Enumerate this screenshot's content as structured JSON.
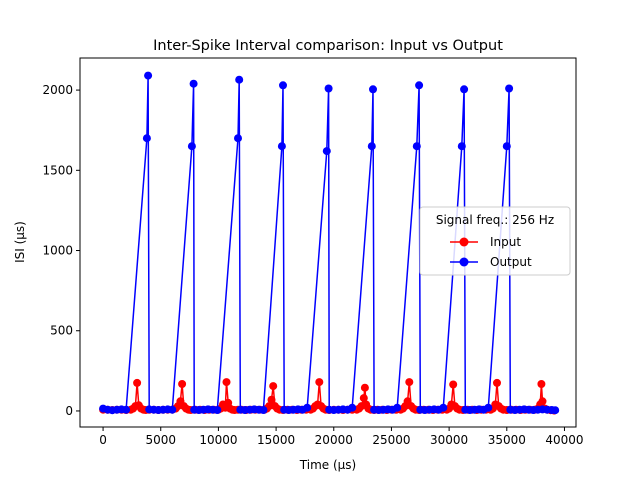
{
  "chart_data": {
    "type": "line",
    "title": "Inter-Spike Interval comparison: Input vs Output",
    "xlabel": "Time (μs)",
    "ylabel": "ISI (μs)",
    "xlim": [
      -2000,
      41000
    ],
    "ylim": [
      -100,
      2200
    ],
    "xticks": [
      0,
      5000,
      10000,
      15000,
      20000,
      25000,
      30000,
      35000,
      40000
    ],
    "yticks": [
      0,
      500,
      1000,
      1500,
      2000
    ],
    "grid": false,
    "legend": {
      "title": "Signal freq.: 256 Hz",
      "placement": "center-right"
    },
    "series": [
      {
        "name": "Input",
        "color": "#ff0000",
        "x": [
          0,
          400,
          800,
          1200,
          1600,
          2000,
          2400,
          2600,
          2800,
          2950,
          3100,
          3300,
          3500,
          3700,
          4000,
          4400,
          4800,
          5200,
          5600,
          6000,
          6300,
          6500,
          6700,
          6850,
          7000,
          7200,
          7400,
          7600,
          8000,
          8400,
          8800,
          9200,
          9600,
          10000,
          10200,
          10400,
          10600,
          10700,
          10850,
          11000,
          11200,
          11400,
          11700,
          12000,
          12400,
          12800,
          13200,
          13600,
          14000,
          14200,
          14400,
          14600,
          14750,
          14900,
          15100,
          15300,
          15600,
          16000,
          16400,
          16800,
          17200,
          17600,
          18000,
          18200,
          18400,
          18600,
          18750,
          18900,
          19100,
          19300,
          19600,
          20000,
          20400,
          20800,
          21200,
          21600,
          22000,
          22200,
          22400,
          22600,
          22700,
          22800,
          23000,
          23200,
          23500,
          23800,
          24200,
          24600,
          25000,
          25400,
          25800,
          26000,
          26200,
          26400,
          26550,
          26700,
          26900,
          27100,
          27400,
          27800,
          28200,
          28600,
          29000,
          29400,
          29800,
          30000,
          30200,
          30350,
          30500,
          30700,
          30900,
          31200,
          31600,
          32000,
          32400,
          32800,
          33200,
          33600,
          33800,
          34000,
          34150,
          34300,
          34500,
          34700,
          35000,
          35400,
          35800,
          36200,
          36600,
          37000,
          37400,
          37700,
          37900,
          38000,
          38100,
          38300,
          38500,
          38800,
          39100
        ],
        "values": [
          8,
          7,
          6,
          8,
          7,
          6,
          8,
          15,
          30,
          175,
          35,
          15,
          8,
          6,
          7,
          8,
          6,
          7,
          8,
          8,
          15,
          30,
          60,
          168,
          30,
          15,
          8,
          6,
          7,
          8,
          6,
          7,
          8,
          8,
          15,
          40,
          20,
          180,
          50,
          15,
          8,
          6,
          7,
          8,
          6,
          7,
          8,
          8,
          8,
          15,
          30,
          70,
          155,
          30,
          15,
          8,
          6,
          7,
          8,
          6,
          7,
          8,
          8,
          15,
          30,
          40,
          180,
          30,
          15,
          8,
          6,
          8,
          7,
          6,
          8,
          7,
          8,
          15,
          30,
          80,
          145,
          40,
          15,
          8,
          6,
          8,
          7,
          6,
          8,
          7,
          8,
          15,
          30,
          60,
          180,
          30,
          15,
          8,
          6,
          8,
          7,
          6,
          8,
          7,
          8,
          15,
          40,
          165,
          30,
          15,
          8,
          6,
          7,
          8,
          6,
          7,
          8,
          7,
          15,
          40,
          175,
          30,
          15,
          8,
          6,
          7,
          8,
          6,
          7,
          8,
          7,
          15,
          40,
          168,
          60,
          15,
          8,
          5,
          2
        ]
      },
      {
        "name": "Output",
        "color": "#0000ff",
        "x": [
          0,
          400,
          800,
          1200,
          1600,
          2000,
          3800,
          3900,
          4000,
          4400,
          4800,
          5200,
          5600,
          6000,
          7700,
          7850,
          7900,
          8300,
          8700,
          9100,
          9500,
          9900,
          11700,
          11800,
          11900,
          12300,
          12700,
          13100,
          13500,
          13900,
          15500,
          15600,
          15700,
          16100,
          16500,
          16900,
          17300,
          17700,
          19400,
          19550,
          19600,
          20000,
          20400,
          20800,
          21200,
          21600,
          23300,
          23400,
          23500,
          23900,
          24300,
          24700,
          25100,
          25500,
          27200,
          27400,
          27500,
          27900,
          28300,
          28700,
          29100,
          29500,
          31100,
          31300,
          31400,
          31800,
          32200,
          32600,
          33000,
          33400,
          35000,
          35200,
          35300,
          35700,
          36100,
          36500,
          36900,
          37300,
          37700,
          38100,
          38500,
          38900,
          39200
        ],
        "values": [
          15,
          8,
          5,
          8,
          10,
          8,
          1700,
          2090,
          10,
          8,
          6,
          8,
          10,
          8,
          1650,
          2040,
          8,
          6,
          8,
          10,
          8,
          6,
          1700,
          2065,
          8,
          6,
          8,
          10,
          8,
          6,
          1650,
          2030,
          8,
          6,
          8,
          10,
          8,
          20,
          1620,
          2010,
          8,
          6,
          8,
          10,
          8,
          20,
          1650,
          2005,
          8,
          6,
          8,
          10,
          8,
          20,
          1650,
          2030,
          8,
          6,
          8,
          10,
          8,
          20,
          1650,
          2005,
          8,
          6,
          8,
          10,
          8,
          20,
          1650,
          2010,
          8,
          6,
          8,
          10,
          8,
          6,
          8,
          10,
          8,
          6,
          5
        ]
      }
    ]
  }
}
